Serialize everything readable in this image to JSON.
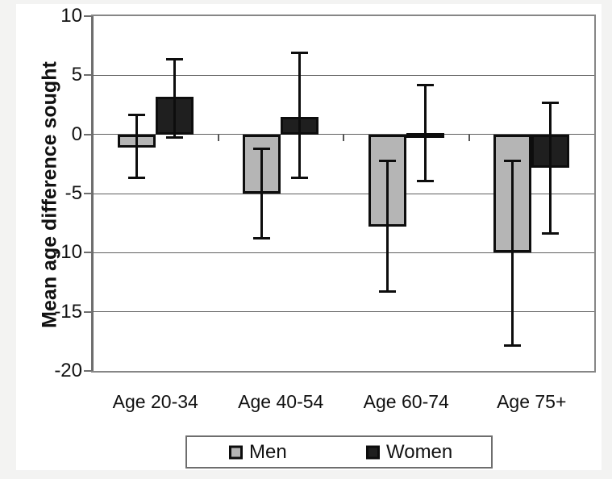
{
  "colors": {
    "men_fill": "#b5b5b5",
    "women_fill": "#1f1f1f",
    "bar_border": "#0d0d0d",
    "error_bar": "#0d0d0d",
    "plot_border": "#868686",
    "gridline": "#5f5f5f",
    "page_margin": "#f3f3f2",
    "plot_background": "#ffffff"
  },
  "chart_data": {
    "type": "bar",
    "title": "",
    "ylabel": "Mean age difference sought",
    "xlabel": "",
    "ylim": [
      -20,
      10
    ],
    "yticks": [
      10,
      5,
      0,
      -5,
      -10,
      -15,
      -20
    ],
    "ytick_labels": [
      "10",
      "5",
      "0",
      "-5",
      "-10",
      "-15",
      "-20"
    ],
    "grid": "horizontal",
    "legend_position": "bottom",
    "categories": [
      "Age 20-34",
      "Age 40-54",
      "Age 60-74",
      "Age 75+"
    ],
    "series": [
      {
        "name": "Men",
        "values": [
          -1.1,
          -5.0,
          -7.8,
          -10.0
        ],
        "error_high": [
          1.7,
          -1.2,
          -2.2,
          -2.2
        ],
        "error_low": [
          -3.7,
          -8.8,
          -13.3,
          -17.9
        ]
      },
      {
        "name": "Women",
        "values": [
          3.2,
          1.5,
          0.1,
          -2.8
        ],
        "error_high": [
          6.4,
          6.9,
          4.2,
          2.7
        ],
        "error_low": [
          -0.3,
          -3.7,
          -4.0,
          -8.4
        ]
      }
    ]
  }
}
